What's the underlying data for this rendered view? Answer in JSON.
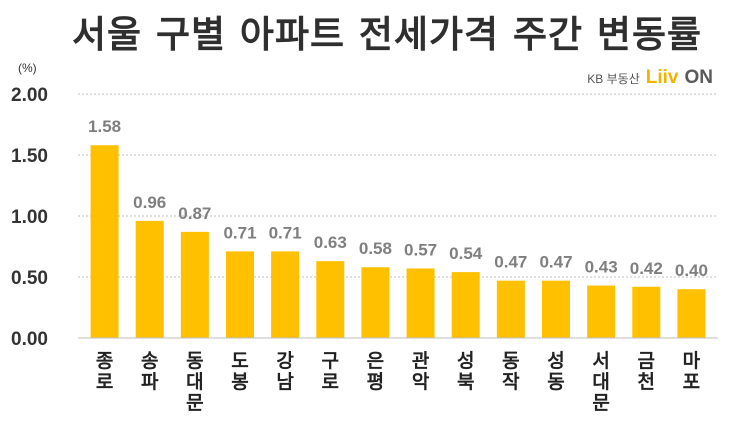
{
  "header": {
    "title": "서울 구별 아파트 전세가격 주간 변동률",
    "logo_kb": "KB 부동산",
    "logo_liiv": "Liiv",
    "logo_on": "ON"
  },
  "chart_data": {
    "type": "bar",
    "title": "서울 구별 아파트 전세가격 주간 변동률",
    "unit": "(%)",
    "categories": [
      "종로",
      "송파",
      "동대문",
      "도봉",
      "강남",
      "구로",
      "은평",
      "관악",
      "성북",
      "동작",
      "성동",
      "서대문",
      "금천",
      "마포"
    ],
    "values": [
      1.58,
      0.96,
      0.87,
      0.71,
      0.71,
      0.63,
      0.58,
      0.57,
      0.54,
      0.47,
      0.47,
      0.43,
      0.42,
      0.4
    ],
    "value_labels": [
      "1.58",
      "0.96",
      "0.87",
      "0.71",
      "0.71",
      "0.63",
      "0.58",
      "0.57",
      "0.54",
      "0.47",
      "0.47",
      "0.43",
      "0.42",
      "0.40"
    ],
    "yticks": [
      "0.00",
      "0.50",
      "1.00",
      "1.50",
      "2.00"
    ],
    "ylim": [
      0,
      2
    ],
    "grid": true,
    "bar_color": "#ffc000",
    "legend": "none"
  }
}
